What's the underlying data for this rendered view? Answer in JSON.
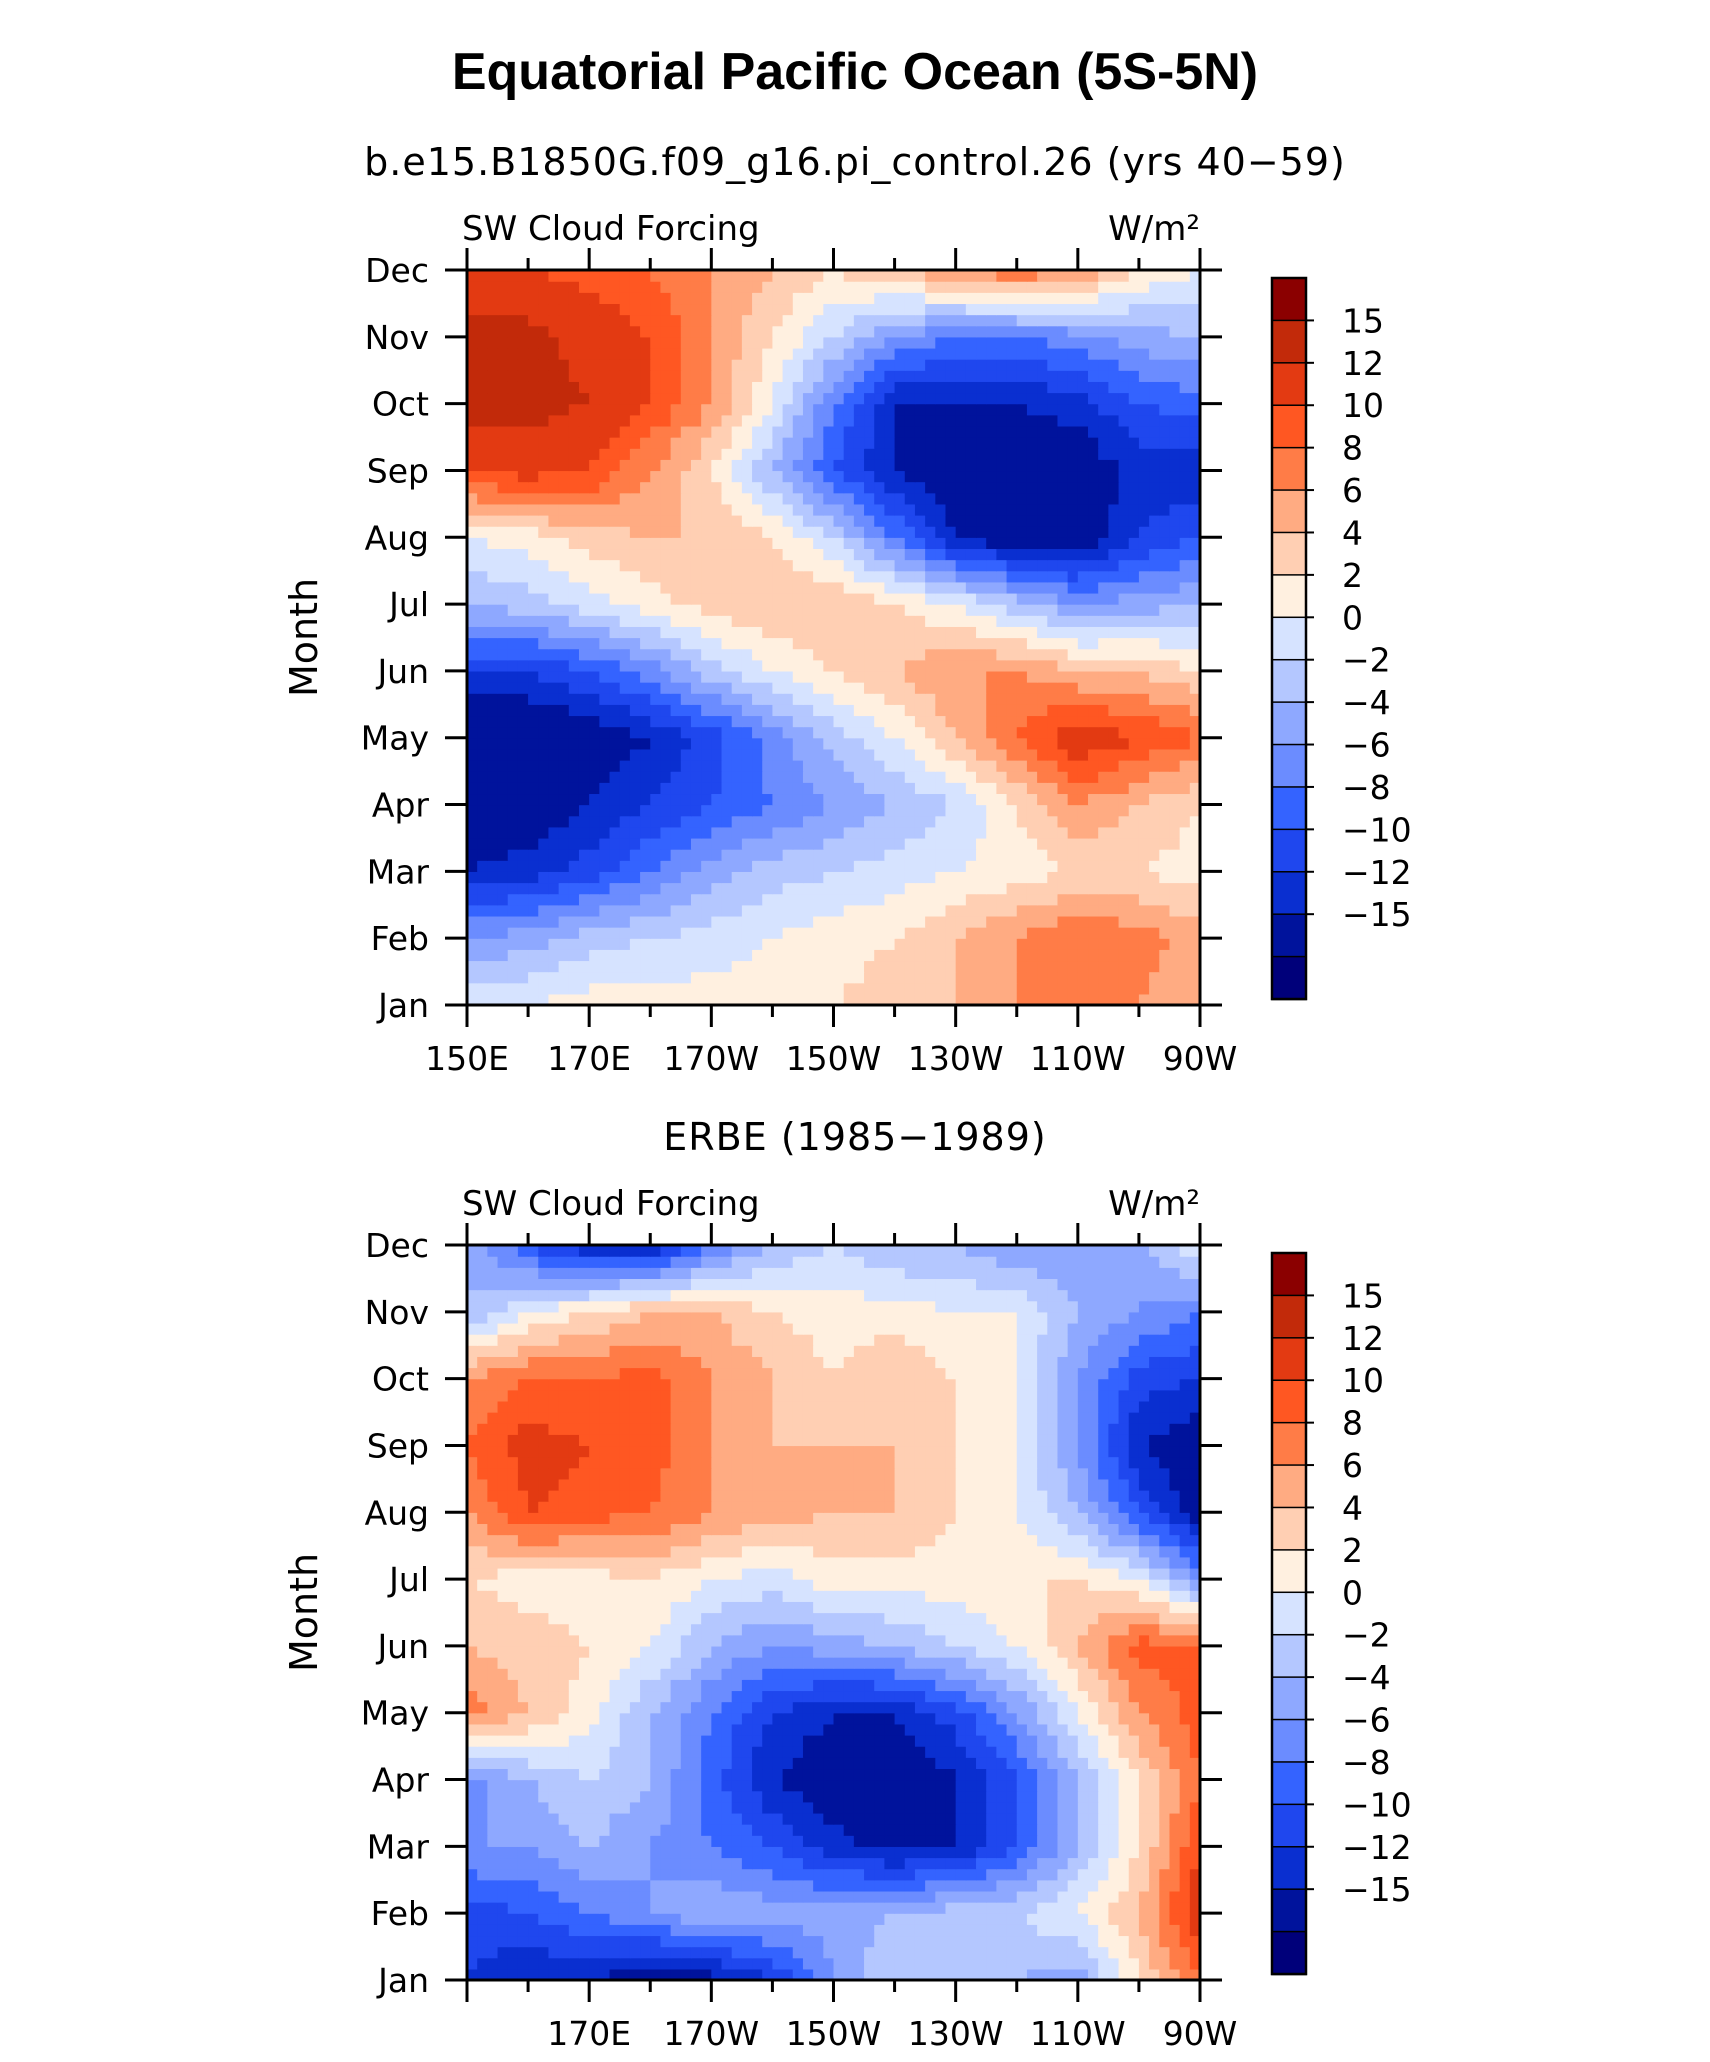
{
  "title": "Equatorial Pacific Ocean (5S-5N)",
  "colormap": [
    "#00007a",
    "#00139c",
    "#0a2fd0",
    "#1f47ee",
    "#3463ff",
    "#6b8cff",
    "#8ea8ff",
    "#b4c7ff",
    "#d6e3ff",
    "#fff0e0",
    "#ffcfb3",
    "#ffab82",
    "#ff7c47",
    "#ff5722",
    "#e33a12",
    "#c22a0a",
    "#8b0000"
  ],
  "chart_data": [
    {
      "type": "heatmap",
      "title": "b.e15.B1850G.f09_g16.pi_control.26 (yrs 40−59)",
      "field_label": "SW Cloud Forcing",
      "units": "W/m²",
      "ylabel": "Month",
      "xlabel": "",
      "x_tick_labels": [
        "150E",
        "170E",
        "170W",
        "150W",
        "130W",
        "110W",
        "90W"
      ],
      "y_tick_labels": [
        "Jan",
        "Feb",
        "Mar",
        "Apr",
        "May",
        "Jun",
        "Jul",
        "Aug",
        "Sep",
        "Oct",
        "Nov",
        "Dec"
      ],
      "colorbar_levels": [
        "15",
        "12",
        "10",
        "8",
        "6",
        "4",
        "2",
        "0",
        "−2",
        "−4",
        "−6",
        "−8",
        "−10",
        "−12",
        "−15"
      ],
      "x": [
        150,
        160,
        170,
        180,
        190,
        200,
        210,
        220,
        230,
        240,
        250,
        260,
        270
      ],
      "y": [
        1,
        2,
        3,
        4,
        5,
        6,
        7,
        8,
        9,
        10,
        11,
        12
      ],
      "z": [
        [
          2,
          2,
          3,
          3,
          3,
          3,
          4,
          5,
          6,
          8,
          10,
          8,
          6
        ],
        [
          -4,
          -3,
          -1,
          0,
          1,
          2,
          3,
          4,
          6,
          8,
          10,
          9,
          7
        ],
        [
          -12,
          -11,
          -9,
          -6,
          -3,
          -1,
          0,
          1,
          2,
          3,
          4,
          4,
          3
        ],
        [
          -14,
          -14,
          -12,
          -10,
          -8,
          -6,
          -4,
          -2,
          0,
          4,
          8,
          6,
          4
        ],
        [
          -15,
          -15,
          -14,
          -12,
          -9,
          -5,
          -1,
          2,
          6,
          10,
          14,
          12,
          10
        ],
        [
          -10,
          -10,
          -8,
          -5,
          -1,
          2,
          4,
          6,
          8,
          8,
          6,
          6,
          4
        ],
        [
          -2,
          -1,
          1,
          3,
          5,
          6,
          6,
          4,
          2,
          -1,
          -4,
          -3,
          -2
        ],
        [
          2,
          3,
          5,
          6,
          6,
          4,
          0,
          -6,
          -12,
          -14,
          -14,
          -10,
          -8
        ],
        [
          12,
          13,
          12,
          8,
          4,
          -2,
          -8,
          -12,
          -14,
          -14,
          -14,
          -11,
          -12
        ],
        [
          16,
          16,
          15,
          12,
          8,
          2,
          -6,
          -12,
          -12,
          -12,
          -11,
          -8,
          -7
        ],
        [
          16,
          16,
          14,
          12,
          8,
          4,
          0,
          -4,
          -6,
          -6,
          -5,
          -3,
          -2
        ],
        [
          12,
          12,
          11,
          10,
          8,
          6,
          4,
          6,
          8,
          10,
          8,
          4,
          2
        ]
      ]
    },
    {
      "type": "heatmap",
      "title": "ERBE (1985−1989)",
      "field_label": "SW Cloud Forcing",
      "units": "W/m²",
      "ylabel": "Month",
      "xlabel": "",
      "x_tick_labels": [
        "",
        "170E",
        "170W",
        "150W",
        "130W",
        "110W",
        "90W"
      ],
      "y_tick_labels": [
        "Jan",
        "Feb",
        "Mar",
        "Apr",
        "May",
        "Jun",
        "Jul",
        "Aug",
        "Sep",
        "Oct",
        "Nov",
        "Dec"
      ],
      "colorbar_levels": [
        "15",
        "12",
        "10",
        "8",
        "6",
        "4",
        "2",
        "0",
        "−2",
        "−4",
        "−6",
        "−8",
        "−10",
        "−12",
        "−15"
      ],
      "x": [
        150,
        160,
        170,
        180,
        190,
        200,
        210,
        220,
        230,
        240,
        250,
        260,
        270
      ],
      "y": [
        1,
        2,
        3,
        4,
        5,
        6,
        7,
        8,
        9,
        10,
        11,
        12
      ],
      "z": [
        [
          -10,
          -12,
          -12,
          -14,
          -13,
          -10,
          -4,
          0,
          -2,
          -2,
          -3,
          4,
          10
        ],
        [
          -9,
          -8,
          -6,
          -4,
          -2,
          -3,
          -3,
          -2,
          -1,
          0,
          2,
          6,
          14
        ],
        [
          -4,
          -4,
          -2,
          -4,
          -6,
          -8,
          -11,
          -13,
          -12,
          -8,
          -2,
          4,
          12
        ],
        [
          -5,
          -2,
          0,
          -2,
          -7,
          -12,
          -14,
          -15,
          -12,
          -8,
          -2,
          4,
          10
        ],
        [
          9,
          6,
          3,
          -2,
          -6,
          -10,
          -12,
          -12,
          -9,
          -4,
          2,
          8,
          11
        ],
        [
          6,
          5,
          4,
          2,
          -2,
          -4,
          -3,
          -2,
          0,
          2,
          6,
          11,
          10
        ],
        [
          4,
          3,
          3,
          4,
          2,
          1,
          3,
          3,
          3,
          4,
          4,
          2,
          -4
        ],
        [
          8,
          12,
          11,
          10,
          8,
          7,
          6,
          6,
          4,
          2,
          -2,
          -8,
          -14
        ],
        [
          10,
          13,
          12,
          11,
          8,
          6,
          6,
          6,
          4,
          2,
          -4,
          -12,
          -14
        ],
        [
          8,
          10,
          10,
          11,
          8,
          6,
          4,
          6,
          4,
          2,
          -4,
          -9,
          -10
        ],
        [
          -2,
          2,
          4,
          6,
          6,
          4,
          3,
          3,
          2,
          2,
          -2,
          -4,
          -6
        ],
        [
          -2,
          -8,
          -12,
          -12,
          -6,
          -2,
          0,
          -2,
          -2,
          -4,
          -4,
          -3,
          2
        ]
      ]
    }
  ]
}
